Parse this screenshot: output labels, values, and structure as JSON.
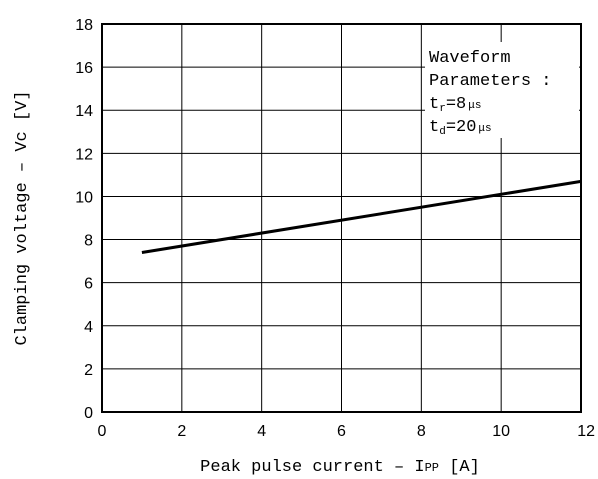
{
  "chart_data": {
    "type": "line",
    "xlabel": "Peak pulse current  –  I",
    "xlabel_sub": "PP",
    "xlabel_unit": " [A]",
    "ylabel": "Clamping voltage  –  Vc [V]",
    "xlim": [
      0,
      12
    ],
    "ylim": [
      0,
      18
    ],
    "x_ticks": [
      0,
      2,
      4,
      6,
      8,
      10,
      12
    ],
    "y_ticks": [
      0,
      2,
      4,
      6,
      8,
      10,
      12,
      14,
      16,
      18
    ],
    "grid": true,
    "series": [
      {
        "x": [
          1,
          12
        ],
        "y": [
          7.4,
          10.7
        ]
      }
    ],
    "annotation": {
      "line1": "Waveform",
      "line2": "Parameters :",
      "tr_prefix": "t",
      "tr_sub": "r",
      "tr_value": "=8",
      "tr_unit": "μs",
      "td_prefix": "t",
      "td_sub": "d",
      "td_value": "=20",
      "td_unit": "μs"
    }
  }
}
